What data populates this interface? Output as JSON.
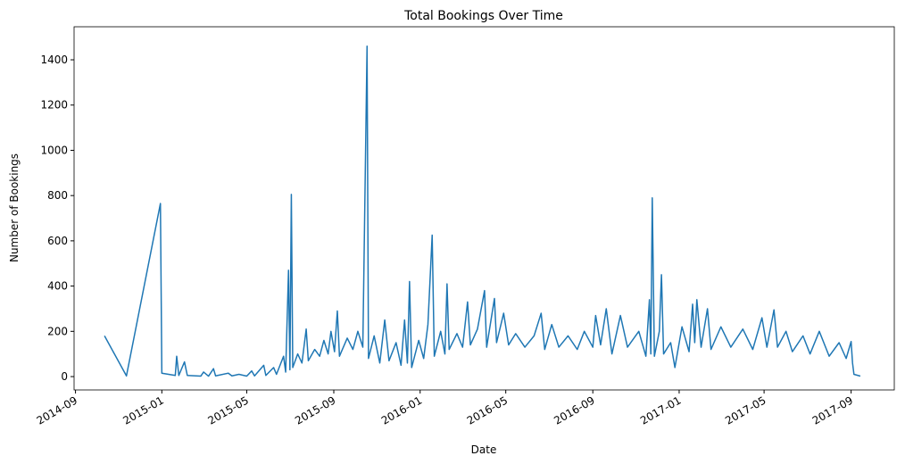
{
  "chart_data": {
    "type": "line",
    "title": "Total Bookings Over Time",
    "xlabel": "Date",
    "ylabel": "Number of Bookings",
    "x": [
      "2014-10-12",
      "2014-11-12",
      "2014-12-30",
      "2015-01-01",
      "2015-01-20",
      "2015-01-22",
      "2015-01-25",
      "2015-02-02",
      "2015-02-06",
      "2015-02-25",
      "2015-03-01",
      "2015-03-08",
      "2015-03-15",
      "2015-03-18",
      "2015-04-05",
      "2015-04-10",
      "2015-04-20",
      "2015-05-01",
      "2015-05-08",
      "2015-05-12",
      "2015-05-25",
      "2015-05-28",
      "2015-06-08",
      "2015-06-12",
      "2015-06-22",
      "2015-06-25",
      "2015-06-29",
      "2015-07-01",
      "2015-07-03",
      "2015-07-05",
      "2015-07-12",
      "2015-07-18",
      "2015-07-24",
      "2015-07-27",
      "2015-08-05",
      "2015-08-12",
      "2015-08-18",
      "2015-08-24",
      "2015-08-28",
      "2015-09-02",
      "2015-09-06",
      "2015-09-09",
      "2015-09-20",
      "2015-09-28",
      "2015-10-05",
      "2015-10-12",
      "2015-10-18",
      "2015-10-20",
      "2015-10-28",
      "2015-11-05",
      "2015-11-12",
      "2015-11-18",
      "2015-11-28",
      "2015-12-05",
      "2015-12-10",
      "2015-12-14",
      "2015-12-17",
      "2015-12-20",
      "2015-12-30",
      "2016-01-06",
      "2016-01-12",
      "2016-01-18",
      "2016-01-21",
      "2016-01-30",
      "2016-02-05",
      "2016-02-08",
      "2016-02-11",
      "2016-02-22",
      "2016-03-01",
      "2016-03-08",
      "2016-03-12",
      "2016-03-22",
      "2016-04-01",
      "2016-04-04",
      "2016-04-15",
      "2016-04-18",
      "2016-04-28",
      "2016-05-05",
      "2016-05-15",
      "2016-05-28",
      "2016-06-10",
      "2016-06-20",
      "2016-06-25",
      "2016-07-05",
      "2016-07-15",
      "2016-07-28",
      "2016-08-10",
      "2016-08-20",
      "2016-09-01",
      "2016-09-05",
      "2016-09-12",
      "2016-09-20",
      "2016-09-28",
      "2016-10-10",
      "2016-10-20",
      "2016-11-05",
      "2016-11-15",
      "2016-11-20",
      "2016-11-22",
      "2016-11-24",
      "2016-11-27",
      "2016-12-04",
      "2016-12-07",
      "2016-12-10",
      "2016-12-20",
      "2016-12-26",
      "2017-01-05",
      "2017-01-15",
      "2017-01-20",
      "2017-01-23",
      "2017-01-26",
      "2017-02-01",
      "2017-02-10",
      "2017-02-15",
      "2017-03-01",
      "2017-03-15",
      "2017-04-01",
      "2017-04-15",
      "2017-04-28",
      "2017-05-05",
      "2017-05-15",
      "2017-05-20",
      "2017-06-01",
      "2017-06-10",
      "2017-06-25",
      "2017-07-05",
      "2017-07-18",
      "2017-08-01",
      "2017-08-15",
      "2017-08-25",
      "2017-09-01",
      "2017-09-03",
      "2017-09-05",
      "2017-09-14"
    ],
    "series": [
      {
        "name": "Bookings",
        "color": "#1f77b4",
        "values": [
          180,
          3,
          765,
          15,
          5,
          90,
          5,
          65,
          5,
          2,
          20,
          2,
          35,
          3,
          15,
          3,
          10,
          2,
          25,
          3,
          50,
          5,
          40,
          10,
          90,
          20,
          470,
          30,
          805,
          40,
          100,
          60,
          210,
          70,
          120,
          90,
          160,
          100,
          200,
          110,
          290,
          90,
          170,
          120,
          200,
          130,
          1460,
          80,
          180,
          60,
          250,
          70,
          150,
          50,
          250,
          60,
          420,
          40,
          160,
          80,
          230,
          625,
          90,
          200,
          100,
          410,
          120,
          190,
          130,
          330,
          140,
          210,
          380,
          130,
          345,
          150,
          280,
          140,
          190,
          130,
          180,
          280,
          120,
          230,
          130,
          180,
          120,
          200,
          130,
          270,
          140,
          300,
          100,
          270,
          130,
          200,
          90,
          340,
          100,
          790,
          90,
          200,
          450,
          100,
          150,
          40,
          220,
          110,
          320,
          150,
          340,
          130,
          300,
          120,
          220,
          130,
          210,
          120,
          260,
          130,
          295,
          130,
          200,
          110,
          180,
          100,
          200,
          90,
          150,
          80,
          155,
          60,
          10,
          2
        ]
      }
    ],
    "xlim": [
      "2014-08-30",
      "2017-11-01"
    ],
    "xticks": [
      "2014-09",
      "2015-01",
      "2015-05",
      "2015-09",
      "2016-01",
      "2016-05",
      "2016-09",
      "2017-01",
      "2017-05",
      "2017-09"
    ],
    "ylim": [
      -59,
      1546
    ],
    "yticks": [
      0,
      200,
      400,
      600,
      800,
      1000,
      1200,
      1400
    ],
    "grid": false
  }
}
